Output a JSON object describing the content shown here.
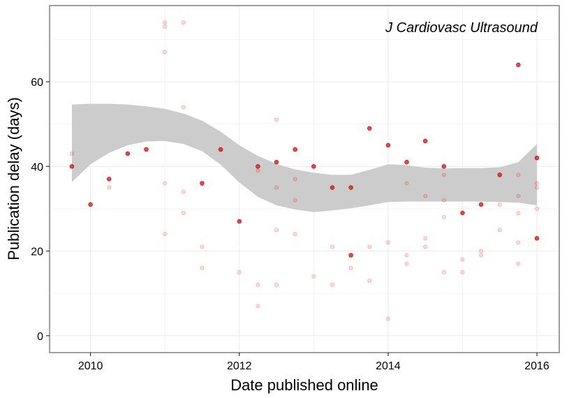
{
  "chart_data": {
    "type": "scatter",
    "title": "",
    "annotation": "J Cardiovasc Ultrasound",
    "xlabel": "Date published online",
    "ylabel": "Publication delay (days)",
    "xlim": [
      2009.45,
      2016.3
    ],
    "ylim": [
      -4,
      78
    ],
    "x_ticks": [
      2010,
      2012,
      2014,
      2016
    ],
    "x_tick_labels": [
      "2010",
      "2012",
      "2014",
      "2016"
    ],
    "y_ticks": [
      0,
      20,
      40,
      60
    ],
    "y_tick_labels": [
      "0",
      "20",
      "40",
      "60"
    ],
    "grid": true,
    "colors": {
      "point": "#e31a1c",
      "band": "#cccccc",
      "grid": "#ebebeb",
      "border": "#7f7f7f"
    },
    "series": [
      {
        "values": [
          [
            2009.75,
            40
          ],
          [
            2010.0,
            31
          ],
          [
            2010.25,
            37
          ],
          [
            2010.5,
            43
          ],
          [
            2010.75,
            44
          ],
          [
            2011.5,
            36
          ],
          [
            2011.75,
            44
          ],
          [
            2012.0,
            27
          ],
          [
            2012.25,
            40
          ],
          [
            2012.5,
            41
          ],
          [
            2012.75,
            44
          ],
          [
            2013.0,
            40
          ],
          [
            2013.25,
            35
          ],
          [
            2013.5,
            35
          ],
          [
            2013.5,
            19
          ],
          [
            2013.75,
            49
          ],
          [
            2014.0,
            45
          ],
          [
            2014.25,
            41
          ],
          [
            2014.5,
            46
          ],
          [
            2014.75,
            40
          ],
          [
            2015.0,
            29
          ],
          [
            2015.25,
            31
          ],
          [
            2015.5,
            38
          ],
          [
            2015.75,
            64
          ],
          [
            2016.0,
            42
          ],
          [
            2016.0,
            23
          ]
        ]
      },
      {
        "values": [
          [
            2009.75,
            43
          ],
          [
            2010.25,
            35
          ],
          [
            2011.0,
            74
          ],
          [
            2011.0,
            73
          ],
          [
            2011.0,
            67
          ],
          [
            2011.25,
            74
          ],
          [
            2011.25,
            54
          ],
          [
            2011.0,
            36
          ],
          [
            2011.25,
            34
          ],
          [
            2011.25,
            29
          ],
          [
            2011.0,
            24
          ],
          [
            2011.5,
            21
          ],
          [
            2011.5,
            16
          ],
          [
            2012.0,
            15
          ],
          [
            2012.25,
            39
          ],
          [
            2012.25,
            12
          ],
          [
            2012.25,
            7
          ],
          [
            2012.5,
            51
          ],
          [
            2012.5,
            35
          ],
          [
            2012.5,
            25
          ],
          [
            2012.5,
            12
          ],
          [
            2012.75,
            37
          ],
          [
            2012.75,
            32
          ],
          [
            2012.75,
            24
          ],
          [
            2013.0,
            14
          ],
          [
            2013.25,
            21
          ],
          [
            2013.25,
            12
          ],
          [
            2013.5,
            16
          ],
          [
            2013.75,
            21
          ],
          [
            2013.75,
            13
          ],
          [
            2014.0,
            22
          ],
          [
            2014.0,
            4
          ],
          [
            2014.25,
            36
          ],
          [
            2014.25,
            19
          ],
          [
            2014.25,
            17
          ],
          [
            2014.5,
            33
          ],
          [
            2014.5,
            23
          ],
          [
            2014.5,
            21
          ],
          [
            2014.75,
            38
          ],
          [
            2014.75,
            32
          ],
          [
            2014.75,
            28
          ],
          [
            2014.75,
            15
          ],
          [
            2015.0,
            18
          ],
          [
            2015.0,
            15
          ],
          [
            2015.25,
            20
          ],
          [
            2015.25,
            19
          ],
          [
            2015.5,
            31
          ],
          [
            2015.5,
            25
          ],
          [
            2015.75,
            38
          ],
          [
            2015.75,
            33
          ],
          [
            2015.75,
            29
          ],
          [
            2015.75,
            22
          ],
          [
            2015.75,
            17
          ],
          [
            2016.0,
            36
          ],
          [
            2016.0,
            35
          ],
          [
            2016.0,
            30
          ]
        ]
      }
    ],
    "smooth_band": {
      "x": [
        2009.75,
        2010.0,
        2010.25,
        2010.5,
        2010.75,
        2011.0,
        2011.25,
        2011.5,
        2011.75,
        2012.0,
        2012.25,
        2012.5,
        2012.75,
        2013.0,
        2013.25,
        2013.5,
        2013.75,
        2014.0,
        2014.25,
        2014.5,
        2014.75,
        2015.0,
        2015.25,
        2015.5,
        2015.75,
        2016.0
      ],
      "lower": [
        36.3,
        40.5,
        43.2,
        45.0,
        45.9,
        46.0,
        45.3,
        43.6,
        40.4,
        36.2,
        32.8,
        30.8,
        29.8,
        29.2,
        29.6,
        30.1,
        30.8,
        31.6,
        31.7,
        31.7,
        31.7,
        31.7,
        31.7,
        31.6,
        31.4,
        30.8
      ],
      "upper": [
        54.6,
        54.8,
        54.8,
        54.6,
        54.2,
        53.6,
        52.5,
        50.8,
        48.2,
        45.0,
        42.5,
        40.6,
        39.3,
        38.5,
        38.0,
        38.0,
        39.2,
        40.5,
        40.3,
        39.7,
        39.5,
        39.6,
        39.6,
        39.8,
        41.0,
        45.3
      ]
    }
  }
}
